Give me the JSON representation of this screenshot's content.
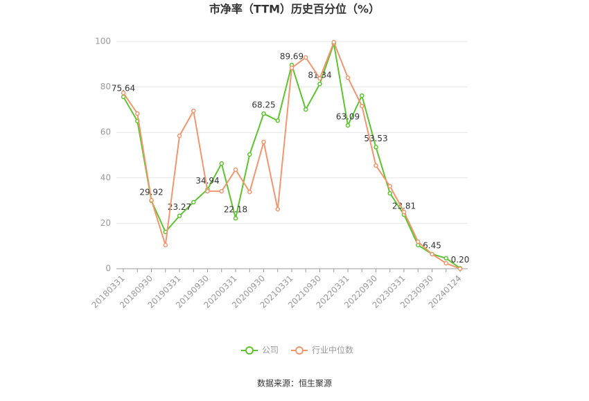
{
  "chart_data": {
    "type": "line",
    "title": "市净率（TTM）历史百分位（%）",
    "source": "数据来源：恒生聚源",
    "categories": [
      "20180331",
      null,
      "20180930",
      null,
      "20190331",
      null,
      "20190930",
      null,
      "20200331",
      null,
      "20200930",
      null,
      "20210331",
      null,
      "20210930",
      null,
      "20220331",
      null,
      "20220930",
      null,
      "20230331",
      null,
      "20230930",
      null,
      "20240124"
    ],
    "series": [
      {
        "name": "公司",
        "color": "#5cc42e",
        "values": [
          75.64,
          65,
          29.92,
          16.2,
          23.27,
          29.3,
          34.94,
          46.3,
          22.18,
          50.3,
          68.25,
          65.2,
          89.69,
          70.1,
          81.34,
          99.1,
          63.09,
          76.2,
          53.53,
          33.2,
          23.81,
          10.4,
          6.45,
          4.6,
          0.2
        ],
        "value_labels": [
          "75.64",
          null,
          "29.92",
          null,
          "23.27",
          null,
          "34.94",
          null,
          "22.18",
          null,
          "68.25",
          null,
          "89.69",
          null,
          "81.34",
          null,
          "63.09",
          null,
          "53.53",
          null,
          "23.81",
          null,
          "6.45",
          null,
          "0.20"
        ]
      },
      {
        "name": "行业中位数",
        "color": "#f3956d",
        "values": [
          77.4,
          68.3,
          30.2,
          10.4,
          58.5,
          69.5,
          34.1,
          34.1,
          43.6,
          33.8,
          55.8,
          26.2,
          88.4,
          93.0,
          83.8,
          99.7,
          84.1,
          71.6,
          45.4,
          36.3,
          25.0,
          11.9,
          6.4,
          2.4,
          0
        ]
      }
    ],
    "ylim": [
      0,
      100
    ],
    "yticks": [
      0,
      20,
      40,
      60,
      80,
      100
    ],
    "grid": true,
    "legend": "bottom"
  }
}
